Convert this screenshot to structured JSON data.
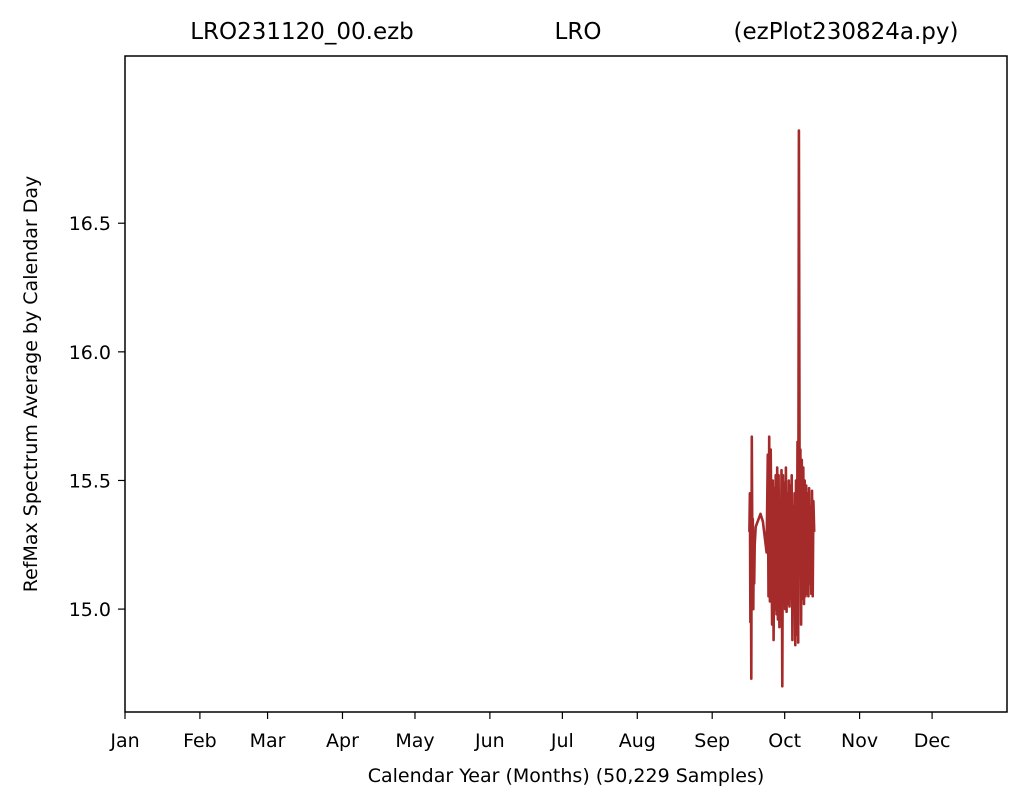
{
  "titles": {
    "left": "LRO231120_00.ezb",
    "center": "LRO",
    "right": "(ezPlot230824a.py)"
  },
  "chart_data": {
    "type": "line",
    "xlabel": "Calendar Year (Months) (50,229 Samples)",
    "ylabel": "RefMax Spectrum Average by Calendar Day",
    "x_unit": "day of year",
    "xlim": [
      1,
      366
    ],
    "ylim": [
      14.6,
      17.15
    ],
    "x_ticks": [
      {
        "label": "Jan",
        "day": 1
      },
      {
        "label": "Feb",
        "day": 32
      },
      {
        "label": "Mar",
        "day": 60
      },
      {
        "label": "Apr",
        "day": 91
      },
      {
        "label": "May",
        "day": 121
      },
      {
        "label": "Jun",
        "day": 152
      },
      {
        "label": "Jul",
        "day": 182
      },
      {
        "label": "Aug",
        "day": 213
      },
      {
        "label": "Sep",
        "day": 244
      },
      {
        "label": "Oct",
        "day": 274
      },
      {
        "label": "Nov",
        "day": 305
      },
      {
        "label": "Dec",
        "day": 335
      }
    ],
    "y_ticks": [
      {
        "label": "15.0",
        "value": 15.0
      },
      {
        "label": "15.5",
        "value": 15.5
      },
      {
        "label": "16.0",
        "value": 16.0
      },
      {
        "label": "16.5",
        "value": 16.5
      }
    ],
    "grid": false,
    "legend": "none",
    "series": [
      {
        "color": "#a52a2a",
        "x": [
          259.4,
          259.6,
          259.8,
          260.0,
          260.2,
          260.4,
          260.6,
          260.8,
          261.0,
          261.2,
          261.4,
          261.6,
          262.0,
          264.0,
          265.0,
          266.5,
          267.0,
          267.3,
          267.6,
          267.9,
          268.2,
          268.5,
          268.8,
          269.1,
          269.4,
          269.7,
          270.0,
          270.3,
          270.6,
          270.9,
          271.2,
          271.5,
          271.8,
          272.1,
          272.4,
          272.7,
          273.0,
          273.3,
          273.6,
          273.9,
          274.2,
          274.5,
          274.8,
          275.1,
          275.4,
          275.7,
          276.0,
          276.3,
          276.6,
          276.9,
          277.2,
          277.5,
          277.8,
          278.1,
          278.4,
          278.7,
          279.0,
          279.3,
          279.6,
          279.9,
          280.2,
          280.5,
          280.8,
          281.1,
          281.4,
          281.7,
          282.0,
          282.3,
          282.6,
          282.9,
          283.2,
          283.5,
          283.8,
          284.1,
          284.4,
          284.7,
          285.0,
          285.3,
          285.6,
          285.9,
          286.2
        ],
        "y": [
          15.3,
          15.45,
          14.95,
          15.2,
          14.73,
          15.67,
          15.25,
          15.35,
          15.0,
          15.3,
          15.1,
          15.25,
          15.32,
          15.37,
          15.34,
          15.22,
          15.6,
          15.05,
          15.67,
          15.03,
          15.62,
          15.3,
          14.94,
          15.5,
          14.88,
          15.47,
          15.0,
          15.52,
          14.98,
          15.55,
          14.96,
          15.52,
          14.93,
          15.42,
          15.08,
          15.54,
          14.7,
          15.52,
          15.05,
          15.49,
          15.0,
          15.55,
          14.99,
          15.45,
          15.02,
          15.5,
          15.01,
          15.48,
          15.04,
          15.52,
          14.88,
          15.4,
          15.0,
          15.45,
          14.86,
          15.5,
          14.9,
          15.65,
          14.87,
          16.86,
          15.3,
          15.62,
          14.94,
          15.58,
          15.04,
          15.55,
          15.02,
          15.5,
          15.05,
          15.48,
          15.06,
          15.45,
          15.05,
          15.47,
          15.1,
          15.4,
          15.06,
          15.46,
          15.05,
          15.42,
          15.3
        ]
      }
    ]
  }
}
